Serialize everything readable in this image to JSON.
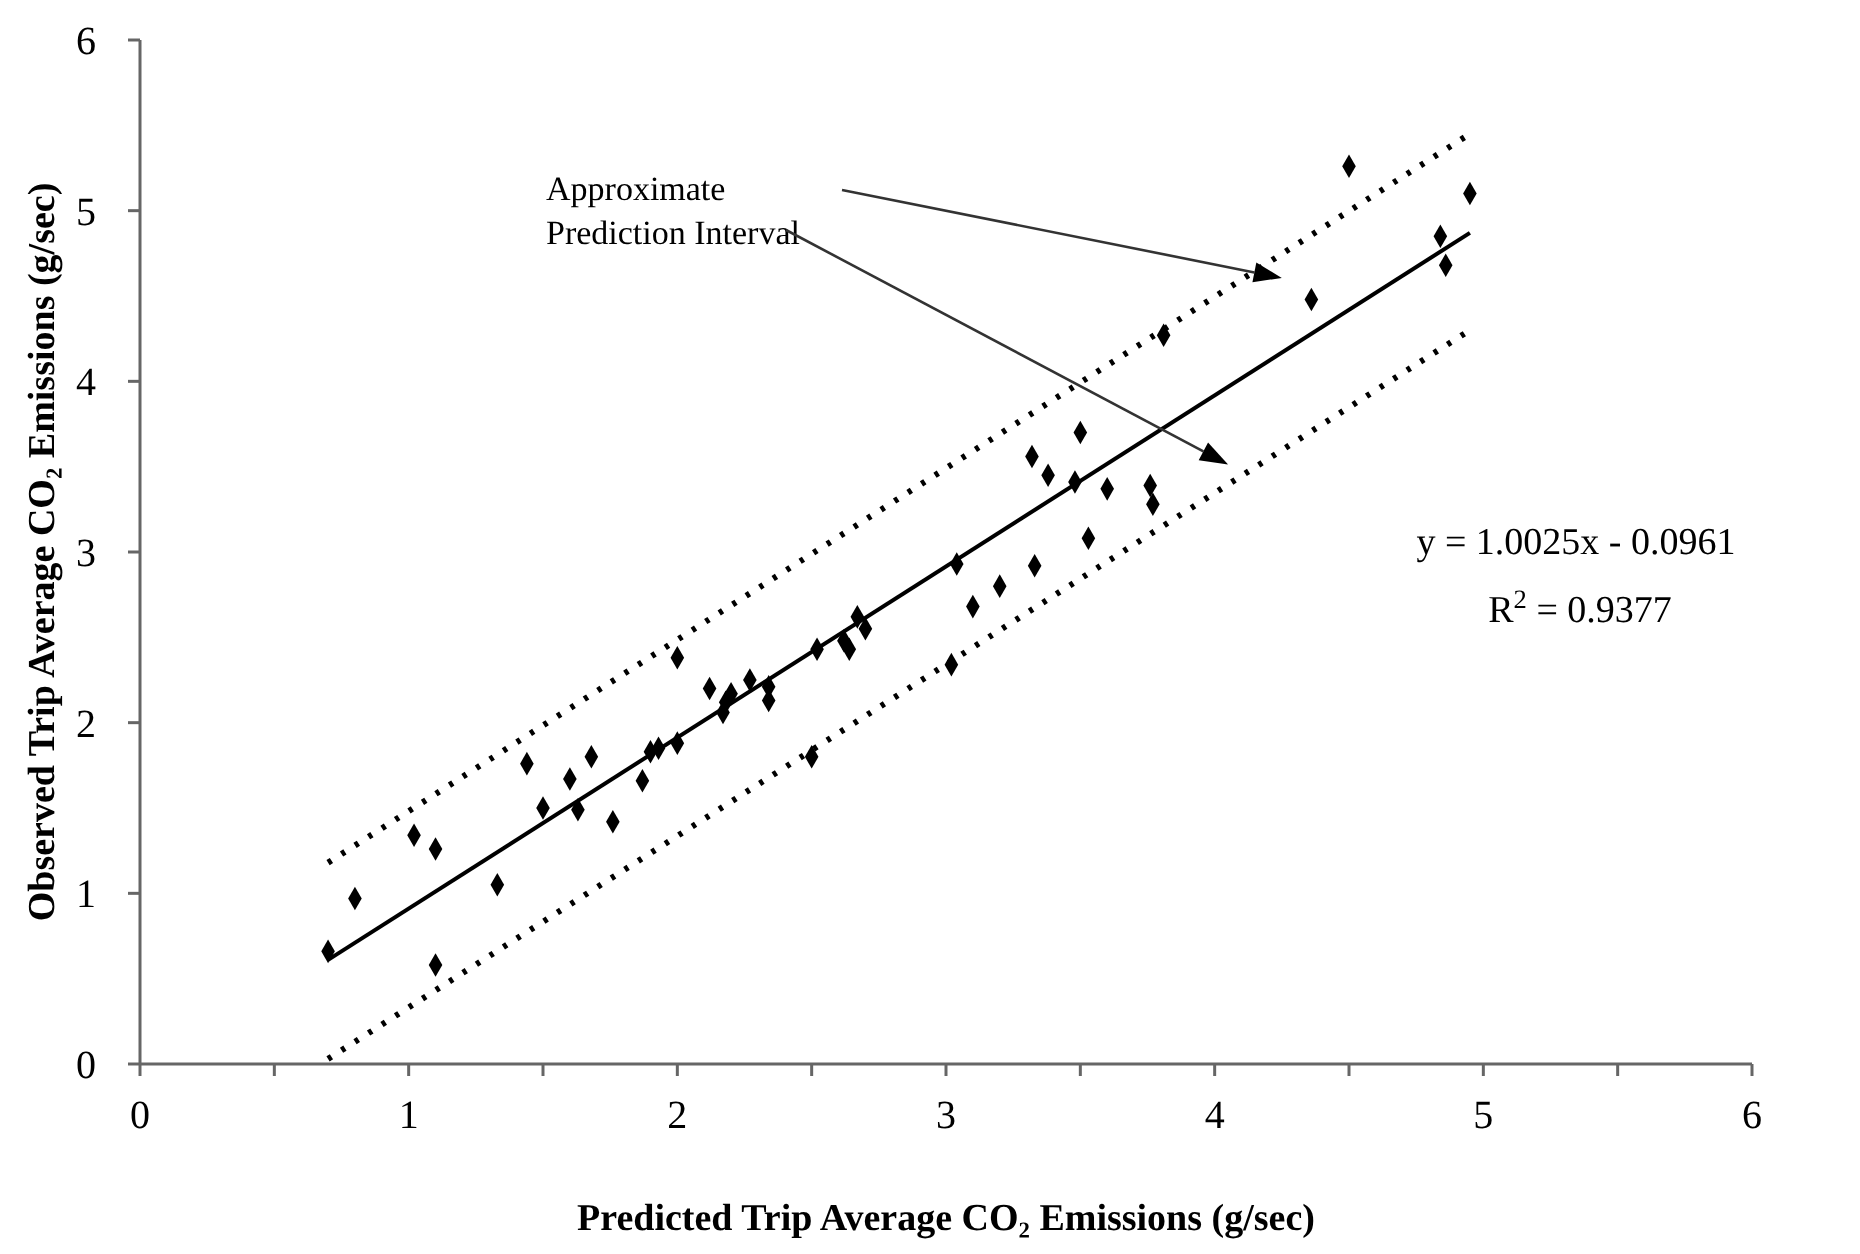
{
  "chart_data": {
    "type": "scatter",
    "xlabel": "Predicted Trip Average CO₂ Emissions (g/sec)",
    "ylabel": "Observed Trip Average CO₂ Emissions (g/sec)",
    "xlim": [
      0,
      6
    ],
    "ylim": [
      0,
      6
    ],
    "xticks": [
      0,
      {
        "value": 0.5,
        "label": null
      },
      1,
      {
        "value": 1.5,
        "label": null
      },
      2,
      {
        "value": 2.5,
        "label": null
      },
      3,
      {
        "value": 3.5,
        "label": null
      },
      4,
      {
        "value": 4.5,
        "label": null
      },
      5,
      {
        "value": 5.5,
        "label": null
      },
      6
    ],
    "yticks": [
      0,
      1,
      2,
      3,
      4,
      5,
      6
    ],
    "grid": false,
    "series": [
      {
        "type": "scatter",
        "color": "#000000",
        "marker": "diamond",
        "x": [
          0.7,
          0.8,
          1.02,
          1.1,
          1.1,
          1.33,
          1.44,
          1.5,
          1.6,
          1.63,
          1.68,
          1.76,
          1.87,
          1.9,
          1.93,
          2.0,
          2.0,
          2.12,
          2.17,
          2.18,
          2.2,
          2.27,
          2.34,
          2.34,
          2.5,
          2.52,
          2.62,
          2.64,
          2.67,
          2.7,
          3.02,
          3.04,
          3.1,
          3.2,
          3.32,
          3.33,
          3.38,
          3.48,
          3.5,
          3.53,
          3.6,
          3.76,
          3.77,
          3.81,
          4.36,
          4.5,
          4.84,
          4.86,
          4.95
        ],
        "values": [
          0.66,
          0.97,
          1.34,
          1.26,
          0.58,
          1.05,
          1.76,
          1.5,
          1.67,
          1.49,
          1.8,
          1.42,
          1.66,
          1.83,
          1.85,
          1.88,
          2.38,
          2.2,
          2.06,
          2.12,
          2.17,
          2.25,
          2.21,
          2.13,
          1.8,
          2.43,
          2.48,
          2.43,
          2.62,
          2.55,
          2.34,
          2.93,
          2.68,
          2.8,
          3.56,
          2.92,
          3.45,
          3.41,
          3.7,
          3.08,
          3.37,
          3.39,
          3.28,
          4.27,
          4.48,
          5.26,
          4.85,
          4.68,
          5.1
        ]
      },
      {
        "type": "line",
        "color": "#000000",
        "marker": "none",
        "line_style": "solid",
        "x": [
          0.7,
          4.95
        ],
        "values": [
          0.61,
          4.87
        ]
      },
      {
        "type": "line",
        "color": "#000000",
        "marker": "none",
        "line_style": "dotted",
        "x": [
          0.7,
          4.95
        ],
        "values": [
          1.18,
          5.45
        ]
      },
      {
        "type": "line",
        "color": "#000000",
        "marker": "none",
        "line_style": "dotted",
        "x": [
          0.7,
          4.95
        ],
        "values": [
          0.03,
          4.3
        ]
      }
    ],
    "annotations": [
      "Approximate Prediction Interval",
      "y = 1.0025x - 0.0961",
      "R$^{2}$ = 0.9377"
    ]
  }
}
